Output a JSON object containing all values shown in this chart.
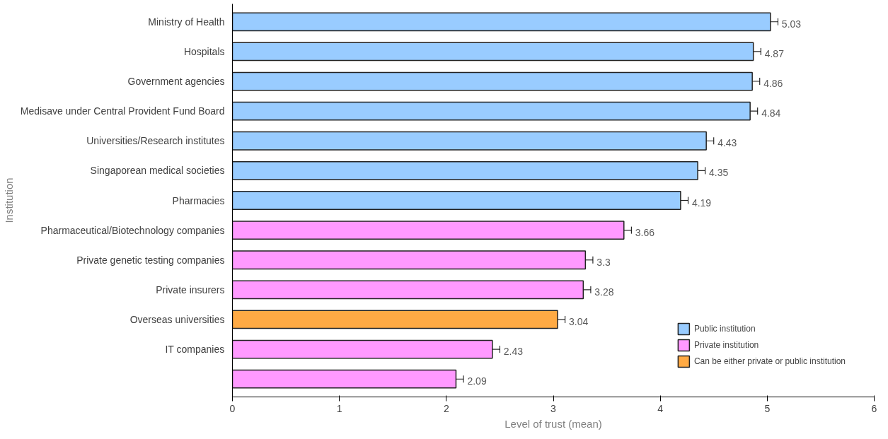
{
  "chart_data": {
    "type": "bar",
    "orientation": "horizontal",
    "xlabel": "Level of trust (mean)",
    "ylabel": "Institution",
    "categories": [
      "Ministry of Health",
      "Hospitals",
      "Government agencies",
      "Medisave under Central Provident Fund Board",
      "Universities/Research institutes",
      "Singaporean medical societies",
      "Pharmacies",
      "Pharmaceutical/Biotechnology companies",
      "Private genetic testing companies",
      "Private insurers",
      "Overseas universities",
      "IT companies",
      null
    ],
    "series": [
      {
        "name": "Public institution",
        "color": "#99ccff",
        "values": [
          5.03,
          4.87,
          4.86,
          4.84,
          4.43,
          4.35,
          4.19,
          null,
          null,
          null,
          null,
          null,
          null
        ],
        "errors": [
          0.07,
          0.07,
          0.07,
          0.07,
          0.07,
          0.07,
          0.07,
          null,
          null,
          null,
          null,
          null,
          null
        ]
      },
      {
        "name": "Private institution",
        "color": "#ff99ff",
        "values": [
          null,
          null,
          null,
          null,
          null,
          null,
          null,
          3.66,
          3.3,
          3.28,
          null,
          2.43,
          2.09
        ],
        "errors": [
          null,
          null,
          null,
          null,
          null,
          null,
          null,
          0.07,
          0.07,
          0.07,
          null,
          0.07,
          0.07
        ]
      },
      {
        "name": "Can be either private or public institution",
        "color": "#ffaa44",
        "values": [
          null,
          null,
          null,
          null,
          null,
          null,
          null,
          null,
          null,
          null,
          3.04,
          null,
          null
        ],
        "errors": [
          null,
          null,
          null,
          null,
          null,
          null,
          null,
          null,
          null,
          null,
          0.07,
          null,
          null
        ]
      }
    ],
    "xlim": [
      0,
      6
    ],
    "xticks": [
      0,
      1,
      2,
      3,
      4,
      5,
      6
    ],
    "data_labels": true,
    "grid": false,
    "legend": "bottom right"
  }
}
